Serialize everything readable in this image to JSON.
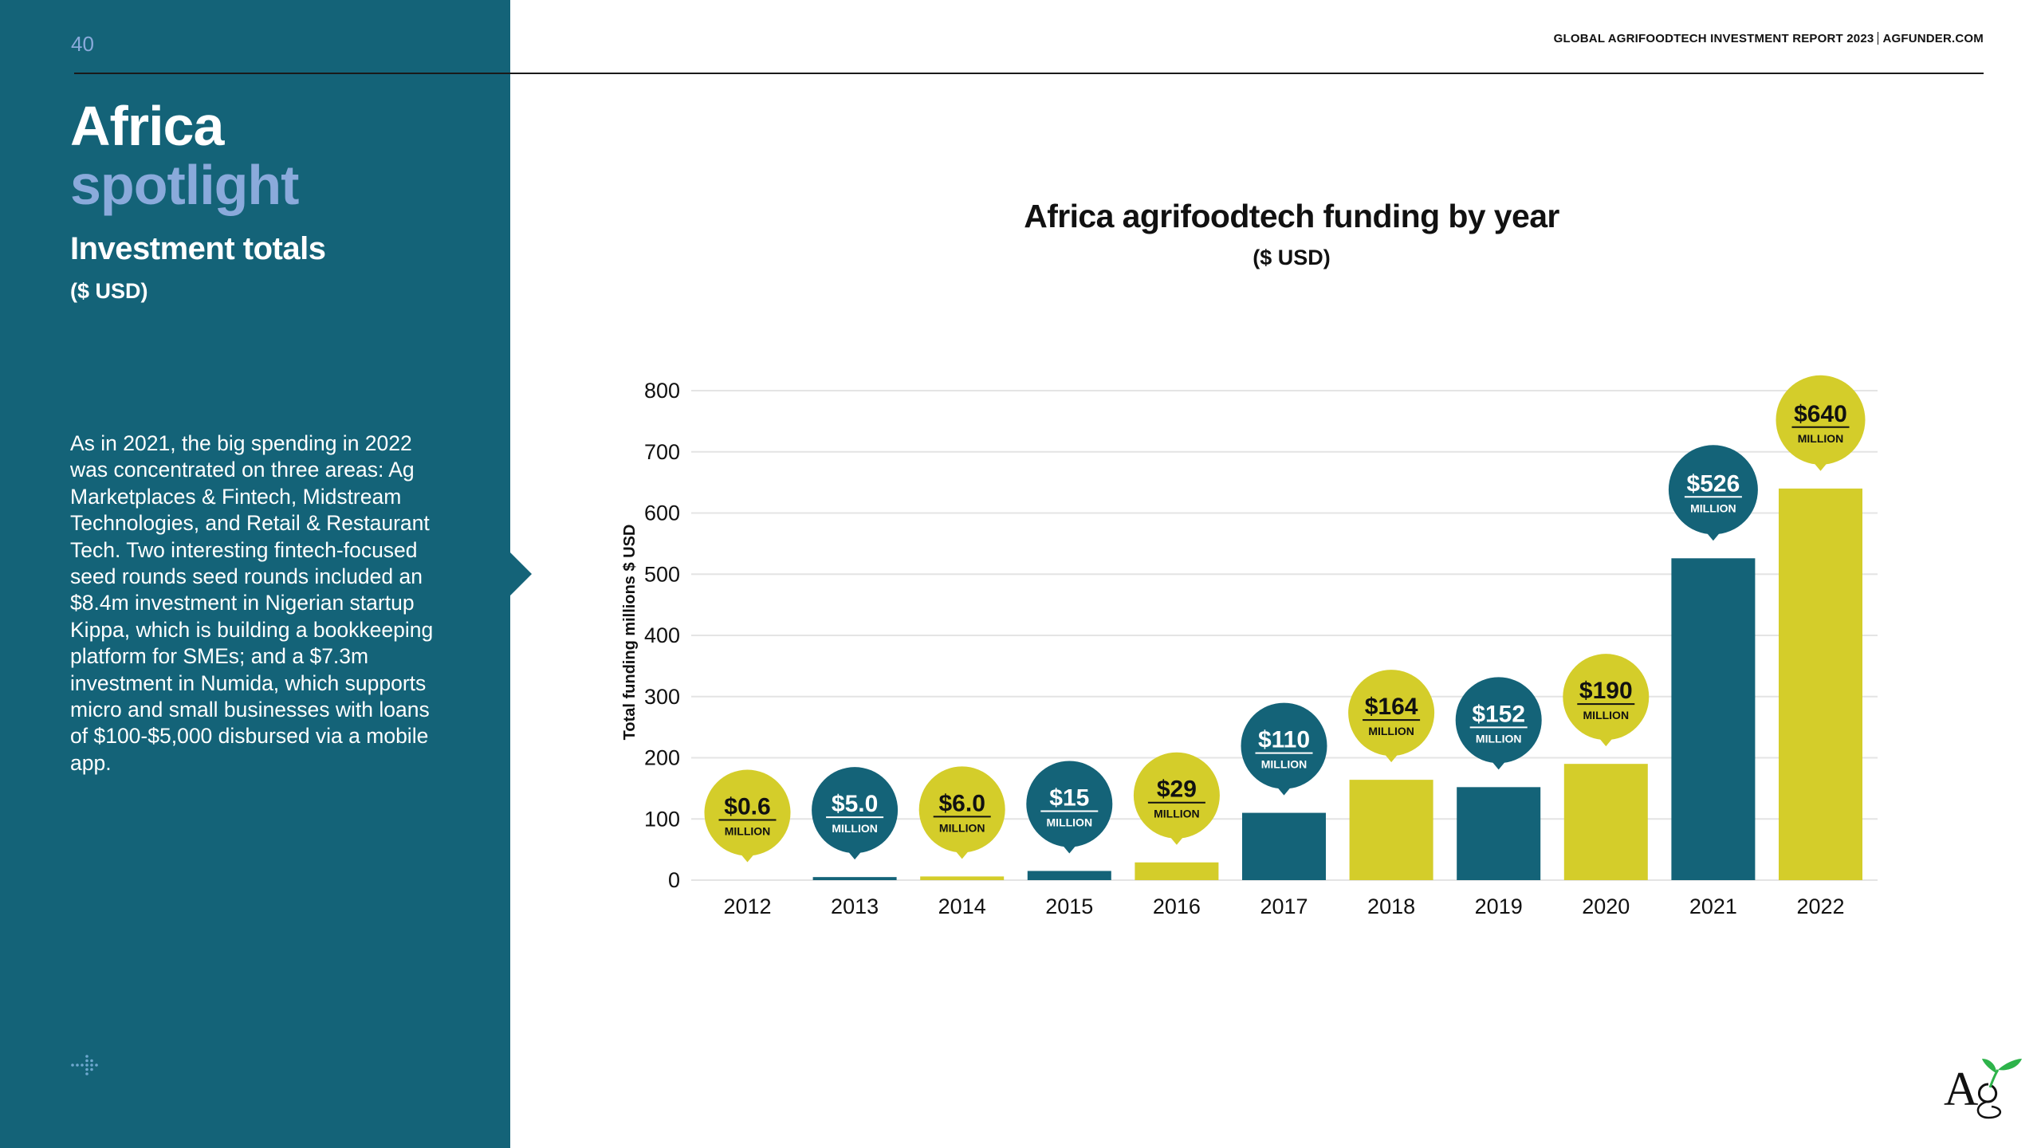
{
  "page": {
    "number": "40",
    "header": {
      "report": "GLOBAL AGRIFOODTECH INVESTMENT REPORT 2023",
      "site": "AGFUNDER.COM"
    }
  },
  "sidebar": {
    "title_line1": "Africa",
    "title_line2": "spotlight",
    "subtitle": "Investment totals",
    "currency": "($ USD)",
    "body": "As in 2021, the big spending in 2022 was concentrated on three areas: Ag Marketplaces & Fintech, Midstream Technologies, and Retail & Restaurant Tech. Two interesting fintech-focused seed rounds seed rounds included an $8.4m investment in Nigerian startup Kippa, which is building a bookkeeping platform for SMEs; and a $7.3m investment in Numida, which supports micro and small businesses with loans of $100-$5,000 disbursed via a mobile app.",
    "icons": [
      "dotted-arrow-icon"
    ]
  },
  "colors": {
    "teal": "#146378",
    "yellow": "#d4cd2a",
    "accent_blue": "#8aaadb"
  },
  "logo": {
    "name": "ag-logo",
    "text": "Ag"
  },
  "chart_data": {
    "type": "bar",
    "title": "Africa agrifoodtech funding by year",
    "subtitle": "($ USD)",
    "xlabel": "",
    "ylabel": "Total funding millions $ USD",
    "ylim": [
      0,
      800
    ],
    "yticks": [
      0,
      100,
      200,
      300,
      400,
      500,
      600,
      700,
      800
    ],
    "grid": true,
    "categories": [
      "2012",
      "2013",
      "2014",
      "2015",
      "2016",
      "2017",
      "2018",
      "2019",
      "2020",
      "2021",
      "2022"
    ],
    "values": [
      0.6,
      5.0,
      6.0,
      15,
      29,
      110,
      164,
      152,
      190,
      526,
      640
    ],
    "data_labels": [
      "$0.6",
      "$5.0",
      "$6.0",
      "$15",
      "$29",
      "$110",
      "$164",
      "$152",
      "$190",
      "$526",
      "$640"
    ],
    "data_label_unit": "MILLION",
    "bar_colors": [
      "yellow",
      "teal",
      "yellow",
      "teal",
      "yellow",
      "teal",
      "yellow",
      "teal",
      "yellow",
      "teal",
      "yellow"
    ]
  }
}
